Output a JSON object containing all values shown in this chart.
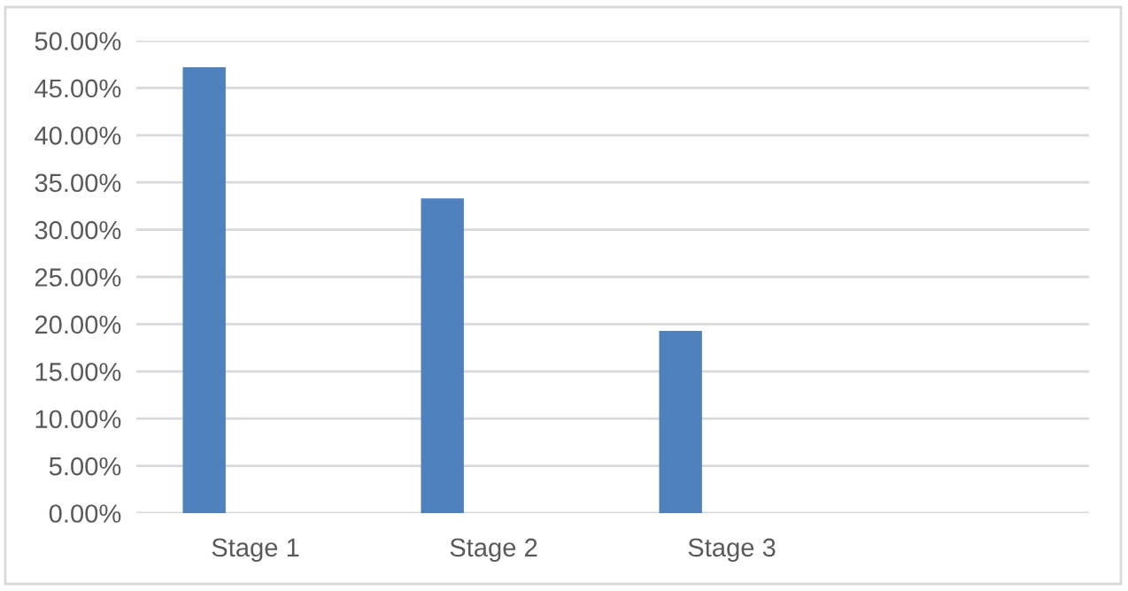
{
  "chart_data": {
    "type": "bar",
    "categories": [
      "Stage 1",
      "Stage 2",
      "Stage 3",
      null
    ],
    "series": [
      {
        "color": "#4f81bd",
        "values": [
          47.2,
          33.3,
          19.3,
          null
        ]
      }
    ],
    "ylim": [
      0,
      50
    ],
    "yticks": [
      {
        "value": 0,
        "label": "0.00%"
      },
      {
        "value": 5,
        "label": "5.00%"
      },
      {
        "value": 10,
        "label": "10.00%"
      },
      {
        "value": 15,
        "label": "15.00%"
      },
      {
        "value": 20,
        "label": "20.00%"
      },
      {
        "value": 25,
        "label": "25.00%"
      },
      {
        "value": 30,
        "label": "30.00%"
      },
      {
        "value": 35,
        "label": "35.00%"
      },
      {
        "value": 40,
        "label": "40.00%"
      },
      {
        "value": 45,
        "label": "45.00%"
      },
      {
        "value": 50,
        "label": "50.00%"
      }
    ],
    "grid": "y"
  }
}
